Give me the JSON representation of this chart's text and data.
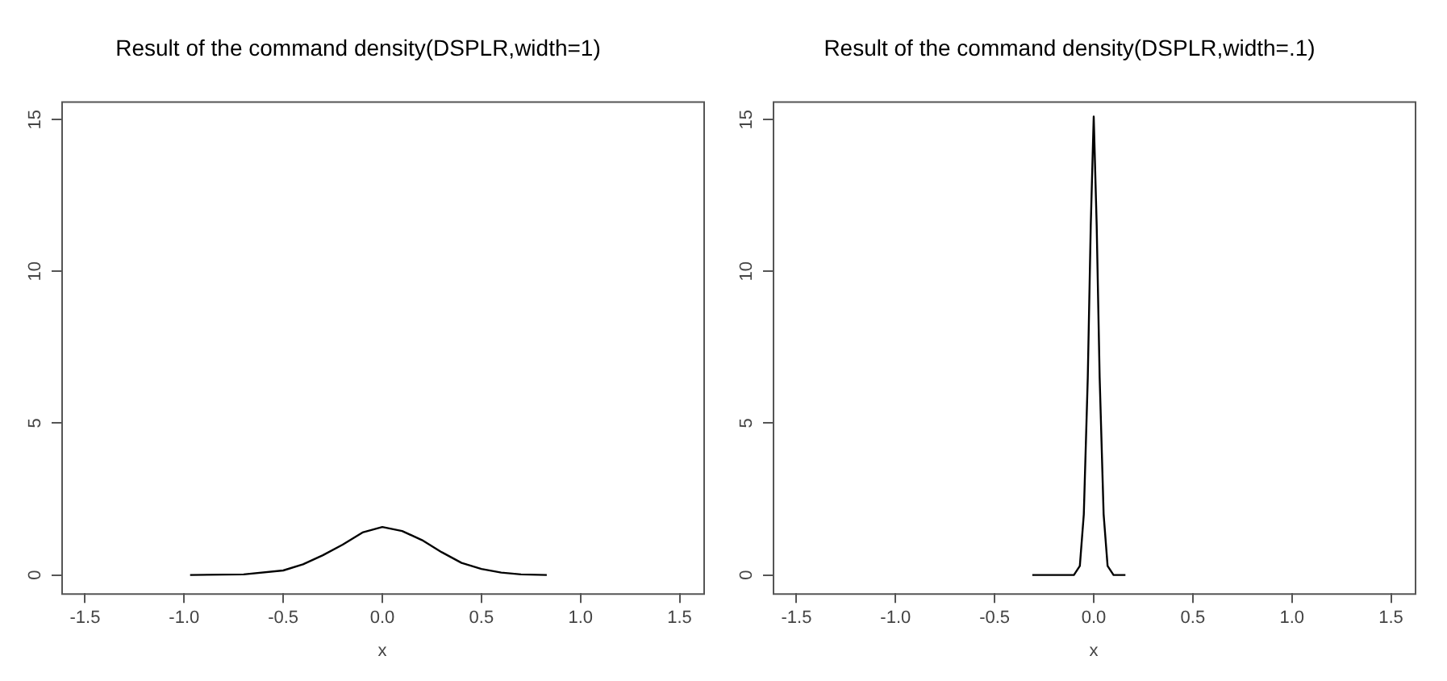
{
  "chart_data": [
    {
      "type": "line",
      "title": "Result of the command density(DSPLR,width=1)",
      "xlabel": "x",
      "xlim": [
        -1.62,
        1.62
      ],
      "xticks": [
        {
          "value": -1.5,
          "label": "-1.5"
        },
        {
          "value": -1,
          "label": "-1.0"
        },
        {
          "value": -0.5,
          "label": "-0.5"
        },
        {
          "value": 0,
          "label": "0.0"
        },
        {
          "value": 0.5,
          "label": "0.5"
        },
        {
          "value": 1,
          "label": "1.0"
        },
        {
          "value": 1.5,
          "label": "1.5"
        }
      ],
      "ylim": [
        -0.6,
        15.6
      ],
      "yticks": [
        0,
        5,
        10,
        15
      ],
      "grid": false,
      "legend": false,
      "marker": "none",
      "series": [
        {
          "color": "#000000",
          "x": [
            -0.97,
            -0.7,
            -0.5,
            -0.4,
            -0.3,
            -0.2,
            -0.1,
            0,
            0.1,
            0.2,
            0.3,
            0.4,
            0.5,
            0.6,
            0.7,
            0.83
          ],
          "values": [
            0,
            0.02,
            0.15,
            0.35,
            0.65,
            1.0,
            1.4,
            1.58,
            1.45,
            1.15,
            0.75,
            0.4,
            0.2,
            0.08,
            0.02,
            0
          ]
        }
      ]
    },
    {
      "type": "line",
      "title": "Result of the command density(DSPLR,width=.1)",
      "xlabel": "x",
      "xlim": [
        -1.62,
        1.62
      ],
      "xticks": [
        {
          "value": -1.5,
          "label": "-1.5"
        },
        {
          "value": -1,
          "label": "-1.0"
        },
        {
          "value": -0.5,
          "label": "-0.5"
        },
        {
          "value": 0,
          "label": "0.0"
        },
        {
          "value": 0.5,
          "label": "0.5"
        },
        {
          "value": 1,
          "label": "1.0"
        },
        {
          "value": 1.5,
          "label": "1.5"
        }
      ],
      "ylim": [
        -0.6,
        15.6
      ],
      "yticks": [
        0,
        5,
        10,
        15
      ],
      "grid": false,
      "legend": false,
      "marker": "none",
      "series": [
        {
          "color": "#000000",
          "x": [
            -0.31,
            -0.1,
            -0.07,
            -0.05,
            -0.03,
            -0.015,
            0,
            0.015,
            0.03,
            0.05,
            0.07,
            0.1,
            0.16
          ],
          "values": [
            0,
            0,
            0.3,
            2,
            6.5,
            11.5,
            15.1,
            11.5,
            6.5,
            2,
            0.3,
            0,
            0
          ]
        }
      ]
    }
  ]
}
